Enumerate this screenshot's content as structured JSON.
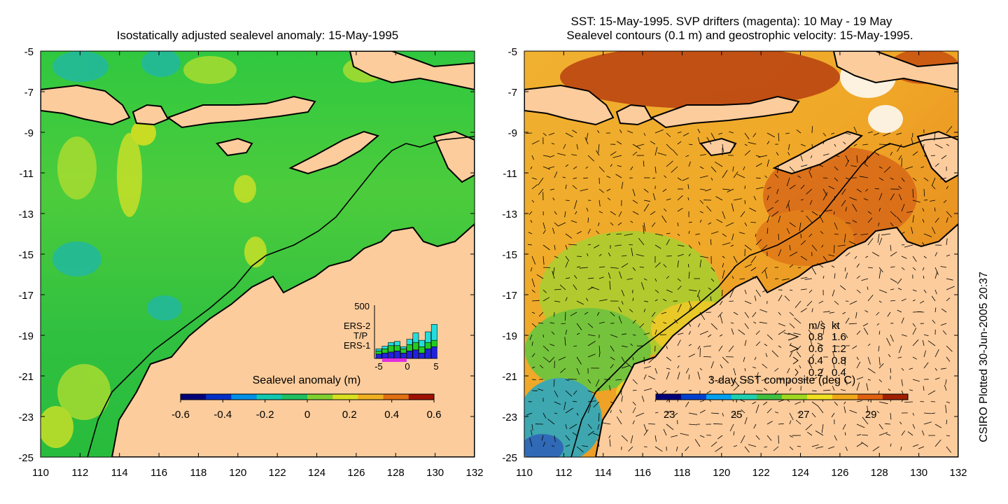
{
  "left_panel": {
    "title": "Isostatically adjusted sealevel anomaly: 15-May-1995",
    "colorbar": {
      "label": "Sealevel anomaly (m)",
      "ticks": [
        "-0.6",
        "-0.4",
        "-0.2",
        "0",
        "0.2",
        "0.4",
        "0.6"
      ],
      "range": [
        -0.6,
        0.6
      ],
      "colors": [
        "#00007a",
        "#0030c8",
        "#0090e8",
        "#10c8b0",
        "#20c060",
        "#80d030",
        "#d8e020",
        "#f0b020",
        "#e07010",
        "#a01000"
      ]
    },
    "x_ticks": [
      "110",
      "112",
      "114",
      "116",
      "118",
      "120",
      "122",
      "124",
      "126",
      "128",
      "130",
      "132"
    ],
    "y_ticks": [
      "-5",
      "-7",
      "-9",
      "-11",
      "-13",
      "-15",
      "-17",
      "-19",
      "-21",
      "-23",
      "-25"
    ],
    "inset": {
      "ytick": "500",
      "xticks": [
        "-5",
        "0",
        "5"
      ],
      "legend": [
        {
          "name": "ERS-2",
          "color": "#22dddd"
        },
        {
          "name": "T/P",
          "color": "#22cc22"
        },
        {
          "name": "ERS-1",
          "color": "#2222dd"
        }
      ],
      "bars": [
        {
          "x": -5,
          "ers1": 40,
          "tp": 30,
          "ers2": 20
        },
        {
          "x": -4,
          "ers1": 50,
          "tp": 40,
          "ers2": 25
        },
        {
          "x": -3,
          "ers1": 60,
          "tp": 60,
          "ers2": 30
        },
        {
          "x": -2,
          "ers1": 70,
          "tp": 50,
          "ers2": 40
        },
        {
          "x": -1,
          "ers1": 50,
          "tp": 40,
          "ers2": 20
        },
        {
          "x": 0,
          "ers1": 70,
          "tp": 60,
          "ers2": 50
        },
        {
          "x": 1,
          "ers1": 80,
          "tp": 70,
          "ers2": 90
        },
        {
          "x": 2,
          "ers1": 50,
          "tp": 60,
          "ers2": 60
        },
        {
          "x": 3,
          "ers1": 90,
          "tp": 60,
          "ers2": 100
        },
        {
          "x": 4,
          "ers1": 110,
          "tp": 60,
          "ers2": 150
        }
      ]
    }
  },
  "right_panel": {
    "title_line1": "SST: 15-May-1995. SVP drifters (magenta): 10 May - 19 May",
    "title_line2": "Sealevel contours (0.1 m) and geostrophic velocity: 15-May-1995.",
    "colorbar": {
      "label": "3-day SST composite (deg C)",
      "ticks": [
        "23",
        "25",
        "27",
        "29"
      ],
      "range": [
        22.6,
        30.1
      ],
      "colors": [
        "#00007a",
        "#0040d0",
        "#00a0f0",
        "#20d0b0",
        "#40c040",
        "#a0d820",
        "#f0e020",
        "#f0a818",
        "#e06010",
        "#a02000"
      ]
    },
    "speed_legend": {
      "header_ms": "m/s",
      "header_kt": "kt",
      "rows": [
        {
          "ms": "0.8",
          "kt": "1.6"
        },
        {
          "ms": "0.6",
          "kt": "1.2"
        },
        {
          "ms": "0.4",
          "kt": "0.8"
        },
        {
          "ms": "0.2",
          "kt": "0.4"
        }
      ]
    },
    "x_ticks": [
      "110",
      "112",
      "114",
      "116",
      "118",
      "120",
      "122",
      "124",
      "126",
      "128",
      "130",
      "132"
    ],
    "y_ticks": [
      "-5",
      "-7",
      "-9",
      "-11",
      "-13",
      "-15",
      "-17",
      "-19",
      "-21",
      "-23",
      "-25"
    ]
  },
  "credit": "CSIRO Plotted 30-Jun-2005 20:37",
  "colors": {
    "land": "#fccc9c",
    "ocean_left": "#2cc83c",
    "ocean_right": "#f0a830",
    "coast": "#000000"
  }
}
